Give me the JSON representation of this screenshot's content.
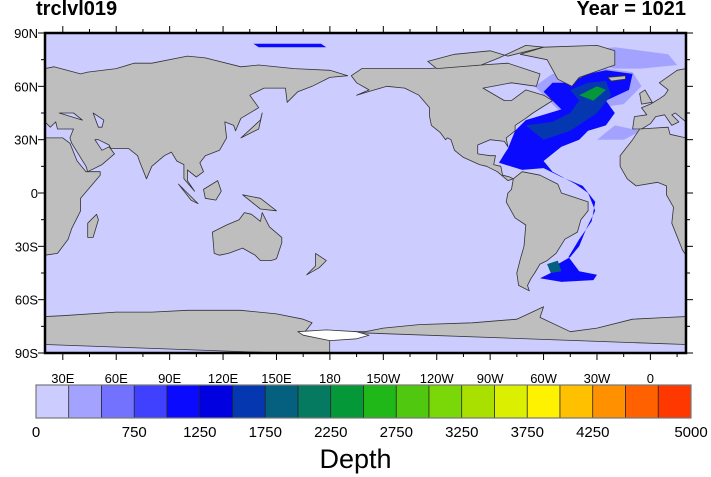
{
  "header": {
    "left_title": "trclvl019",
    "right_title": "Year = 1021"
  },
  "map": {
    "ocean_color": "#ccccff",
    "land_color": "#bebebe",
    "ice_shelf_color": "#ffffff",
    "lat_labels": [
      "90N",
      "60N",
      "30N",
      "0",
      "30S",
      "60S",
      "90S"
    ],
    "lon_labels": [
      "30E",
      "60E",
      "90E",
      "120E",
      "150E",
      "180",
      "150W",
      "120W",
      "90W",
      "60W",
      "30W",
      "0"
    ]
  },
  "colorbar": {
    "title": "Depth",
    "colors": [
      "#ccccff",
      "#a3a3ff",
      "#7272ff",
      "#4040ff",
      "#0a0aff",
      "#0000e0",
      "#0538b0",
      "#056080",
      "#057a60",
      "#059838",
      "#20b818",
      "#50c810",
      "#7ad808",
      "#aae000",
      "#daf000",
      "#fff200",
      "#ffc000",
      "#ff9000",
      "#ff6000",
      "#ff3800"
    ],
    "labels": [
      {
        "text": "0",
        "boundary": 0
      },
      {
        "text": "750",
        "boundary": 3
      },
      {
        "text": "1250",
        "boundary": 5
      },
      {
        "text": "1750",
        "boundary": 7
      },
      {
        "text": "2250",
        "boundary": 9
      },
      {
        "text": "2750",
        "boundary": 11
      },
      {
        "text": "3250",
        "boundary": 13
      },
      {
        "text": "3750",
        "boundary": 15
      },
      {
        "text": "4250",
        "boundary": 17
      },
      {
        "text": "5000",
        "boundary": 20
      }
    ]
  }
}
